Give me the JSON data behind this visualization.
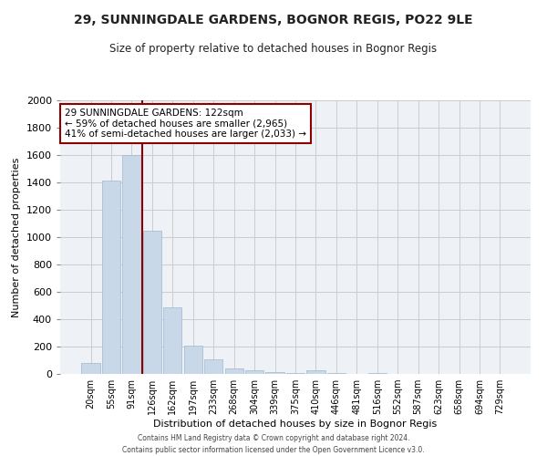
{
  "title": "29, SUNNINGDALE GARDENS, BOGNOR REGIS, PO22 9LE",
  "subtitle": "Size of property relative to detached houses in Bognor Regis",
  "xlabel": "Distribution of detached houses by size in Bognor Regis",
  "ylabel": "Number of detached properties",
  "categories": [
    "20sqm",
    "55sqm",
    "91sqm",
    "126sqm",
    "162sqm",
    "197sqm",
    "233sqm",
    "268sqm",
    "304sqm",
    "339sqm",
    "375sqm",
    "410sqm",
    "446sqm",
    "481sqm",
    "516sqm",
    "552sqm",
    "587sqm",
    "623sqm",
    "658sqm",
    "694sqm",
    "729sqm"
  ],
  "bar_heights": [
    80,
    1415,
    1600,
    1050,
    490,
    205,
    105,
    40,
    25,
    12,
    5,
    25,
    5,
    3,
    5,
    2,
    1,
    1,
    0,
    0,
    0
  ],
  "bar_color": "#c8d8e8",
  "bar_edge_color": "#a0b8cc",
  "property_line_color": "#8b0000",
  "annotation_title": "29 SUNNINGDALE GARDENS: 122sqm",
  "annotation_line1": "← 59% of detached houses are smaller (2,965)",
  "annotation_line2": "41% of semi-detached houses are larger (2,033) →",
  "annotation_box_color": "#8b0000",
  "ylim": [
    0,
    2000
  ],
  "yticks": [
    0,
    200,
    400,
    600,
    800,
    1000,
    1200,
    1400,
    1600,
    1800,
    2000
  ],
  "footer1": "Contains HM Land Registry data © Crown copyright and database right 2024.",
  "footer2": "Contains public sector information licensed under the Open Government Licence v3.0.",
  "bg_color": "#ffffff",
  "plot_bg_color": "#eef2f7",
  "grid_color": "#cccccc"
}
